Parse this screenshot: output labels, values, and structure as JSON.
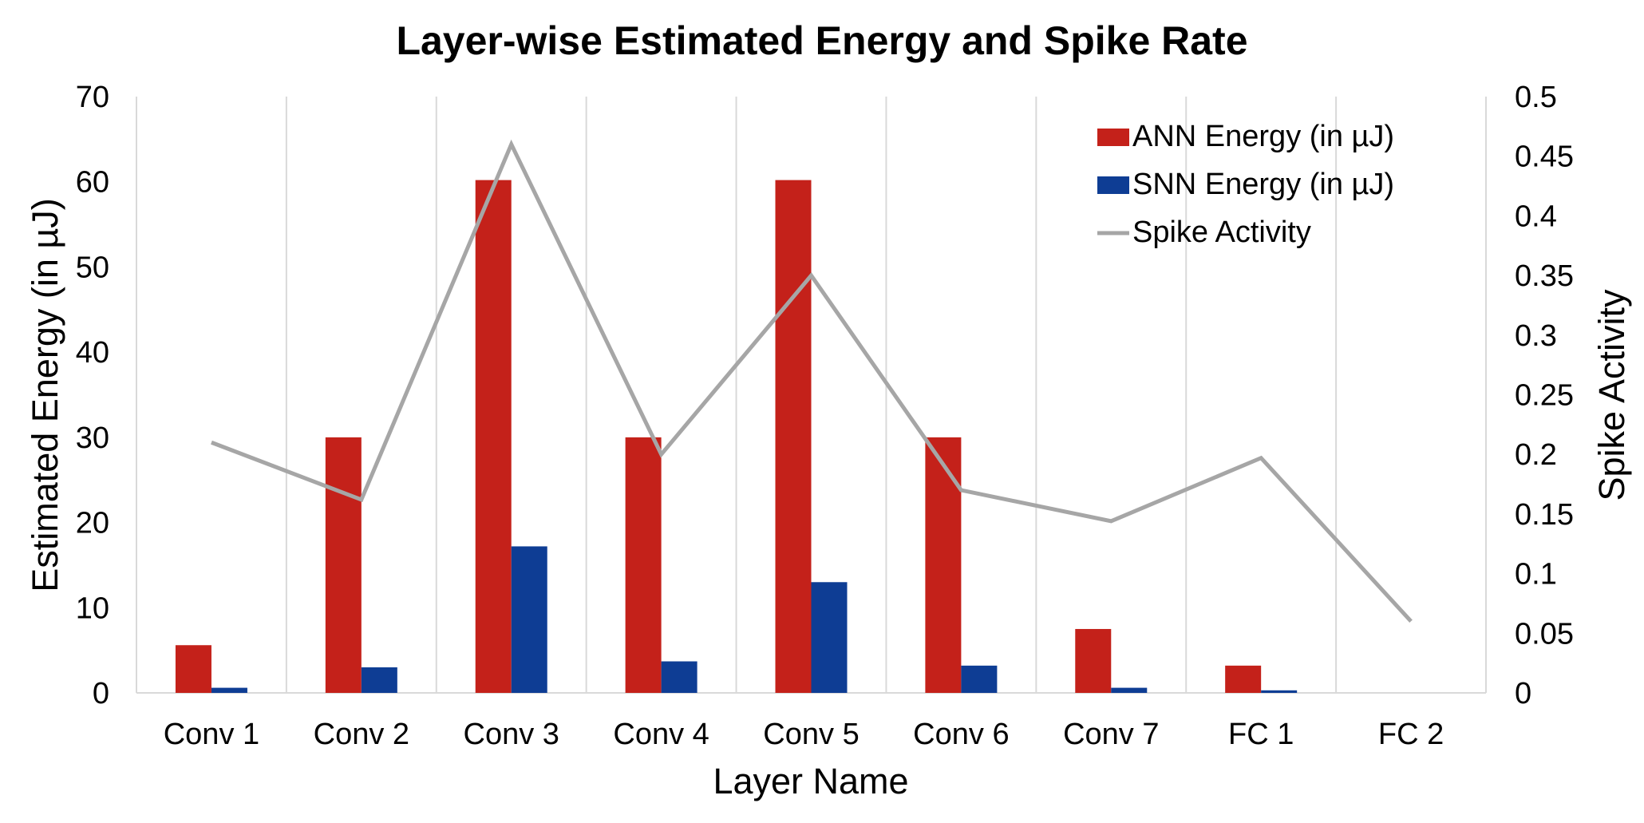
{
  "chart_data": {
    "type": "bar",
    "title": "Layer-wise Estimated Energy and Spike Rate",
    "xlabel": "Layer Name",
    "ylabel": "Estimated Energy (in µJ)",
    "y2label": "Spike Activity",
    "categories": [
      "Conv 1",
      "Conv 2",
      "Conv 3",
      "Conv 4",
      "Conv 5",
      "Conv 6",
      "Conv 7",
      "FC 1",
      "FC 2"
    ],
    "ylim": [
      0,
      70
    ],
    "yticks": [
      "0",
      "10",
      "20",
      "30",
      "40",
      "50",
      "60",
      "70"
    ],
    "y2lim": [
      0,
      0.5
    ],
    "y2ticks": [
      "0",
      "0.05",
      "0.1",
      "0.15",
      "0.2",
      "0.25",
      "0.3",
      "0.35",
      "0.4",
      "0.45",
      "0.5"
    ],
    "grid": "vertical",
    "legend_position": "top-right",
    "series": [
      {
        "name": "ANN Energy (in µJ)",
        "kind": "bar",
        "axis": "left",
        "color": "#c4211a",
        "values": [
          5.6,
          30.0,
          60.2,
          30.0,
          60.2,
          30.0,
          7.5,
          3.2,
          0.0
        ]
      },
      {
        "name": "SNN Energy (in µJ)",
        "kind": "bar",
        "axis": "left",
        "color": "#0e3d94",
        "values": [
          0.6,
          3.0,
          17.2,
          3.7,
          13.0,
          3.2,
          0.6,
          0.3,
          0.0
        ]
      },
      {
        "name": "Spike Activity",
        "kind": "line",
        "axis": "right",
        "color": "#a6a6a6",
        "values": [
          0.21,
          0.162,
          0.46,
          0.2,
          0.35,
          0.17,
          0.144,
          0.197,
          0.06
        ]
      }
    ]
  }
}
